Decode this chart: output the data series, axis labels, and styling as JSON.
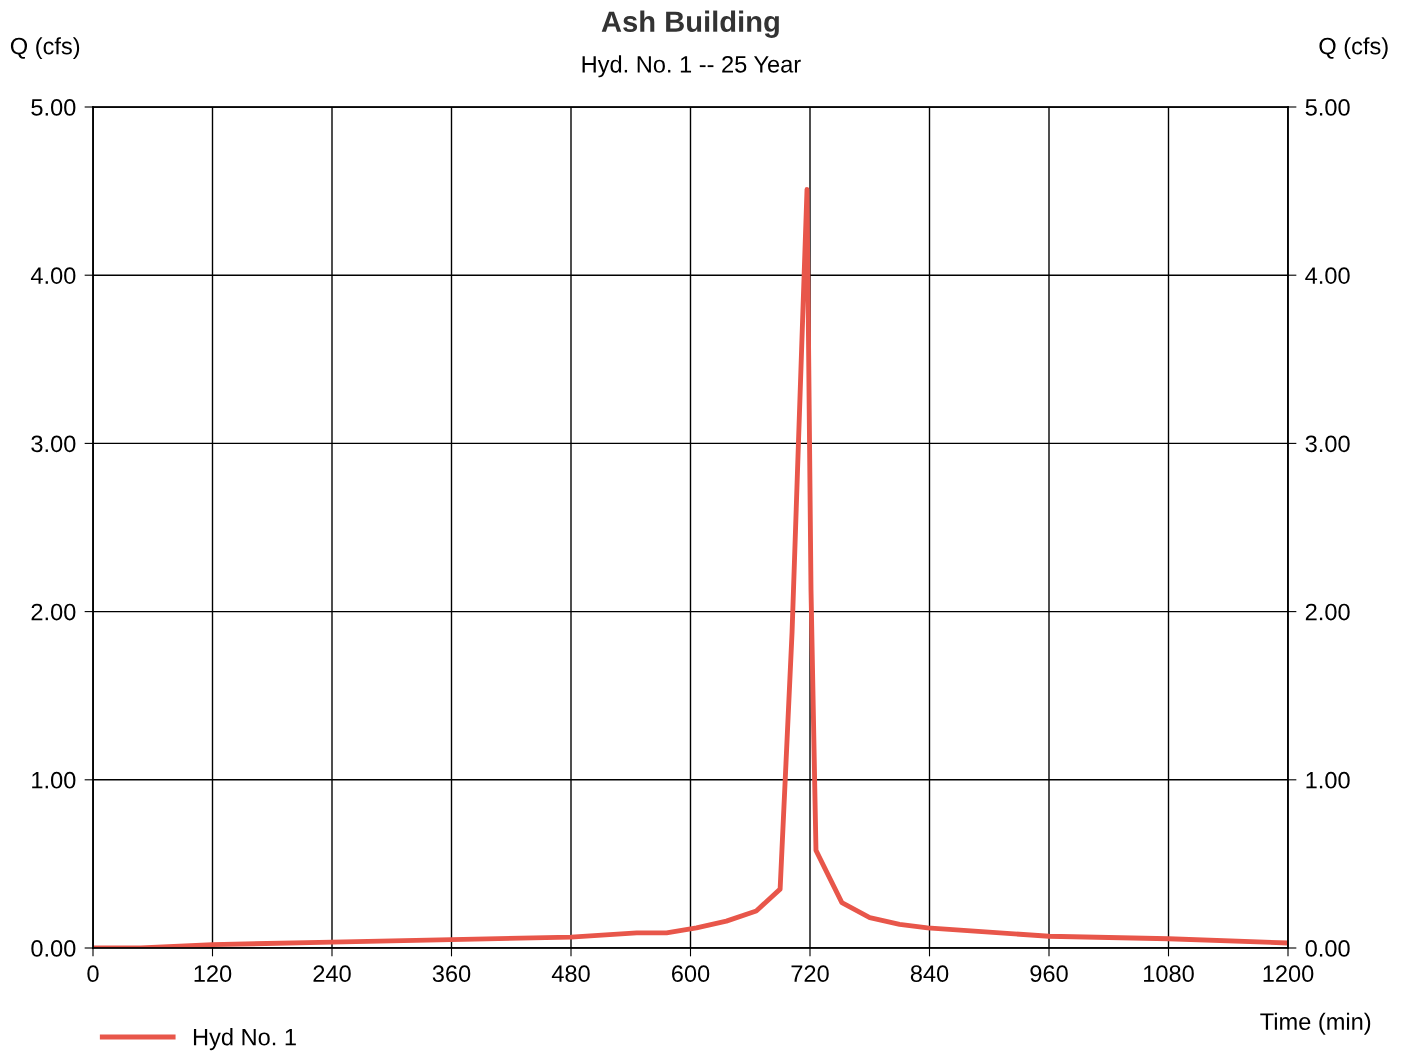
{
  "chart_data": {
    "type": "line",
    "title": "Ash Building",
    "subtitle": "Hyd. No. 1 -- 25 Year",
    "xlabel": "Time (min)",
    "ylabel": "Q (cfs)",
    "y2label": "Q (cfs)",
    "series": [
      {
        "name": "Hyd No. 1",
        "color": "#e8564a",
        "x": [
          0,
          48,
          120,
          240,
          360,
          480,
          546,
          576,
          606,
          636,
          666,
          690,
          702,
          717,
          721,
          726,
          752,
          780,
          810,
          838,
          960,
          1080,
          1200
        ],
        "values": [
          0,
          0,
          0.02,
          0.035,
          0.05,
          0.065,
          0.09,
          0.09,
          0.12,
          0.16,
          0.22,
          0.35,
          1.88,
          4.51,
          2.13,
          0.58,
          0.27,
          0.18,
          0.14,
          0.12,
          0.07,
          0.055,
          0.03
        ]
      }
    ],
    "xlim": [
      0,
      1200
    ],
    "xticks": [
      0,
      120,
      240,
      360,
      480,
      600,
      720,
      840,
      960,
      1080,
      1200
    ],
    "ylim": [
      0,
      5
    ],
    "yticks": [
      {
        "value": 0,
        "label": "0.00"
      },
      {
        "value": 1,
        "label": "1.00"
      },
      {
        "value": 2,
        "label": "2.00"
      },
      {
        "value": 3,
        "label": "3.00"
      },
      {
        "value": 4,
        "label": "4.00"
      },
      {
        "value": 5,
        "label": "5.00"
      }
    ],
    "y2lim": [
      0,
      5
    ],
    "y2ticks": [
      {
        "value": 0,
        "label": "0.00"
      },
      {
        "value": 1,
        "label": "1.00"
      },
      {
        "value": 2,
        "label": "2.00"
      },
      {
        "value": 3,
        "label": "3.00"
      },
      {
        "value": 4,
        "label": "4.00"
      },
      {
        "value": 5,
        "label": "5.00"
      }
    ],
    "grid": true,
    "legend": "bottom left",
    "marker": "none",
    "line_style": "solid"
  }
}
